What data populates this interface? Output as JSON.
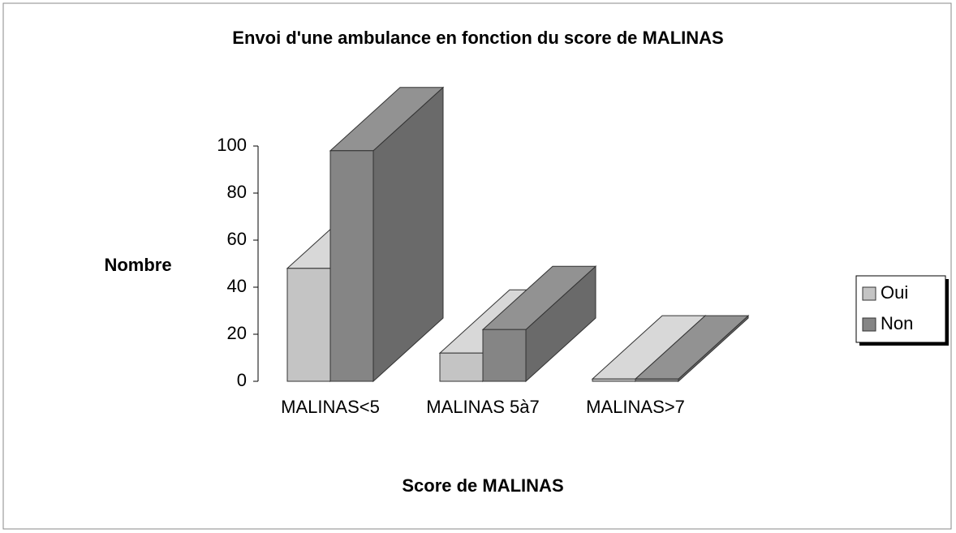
{
  "chart_data": {
    "type": "bar3d",
    "title": "Envoi d'une ambulance en fonction du score de  MALINAS",
    "x_label": "Score de MALINAS",
    "y_label": "Nombre",
    "categories": [
      "MALINAS<5",
      "MALINAS 5à7",
      "MALINAS>7"
    ],
    "series": [
      {
        "name": "Oui",
        "color": "#c4c4c4",
        "values": [
          48,
          12,
          1
        ]
      },
      {
        "name": "Non",
        "color": "#858585",
        "values": [
          98,
          22,
          1
        ]
      }
    ],
    "ylim": [
      0,
      100
    ],
    "yticks": [
      0,
      20,
      40,
      60,
      80,
      100
    ],
    "grid": false,
    "legend": "right"
  }
}
